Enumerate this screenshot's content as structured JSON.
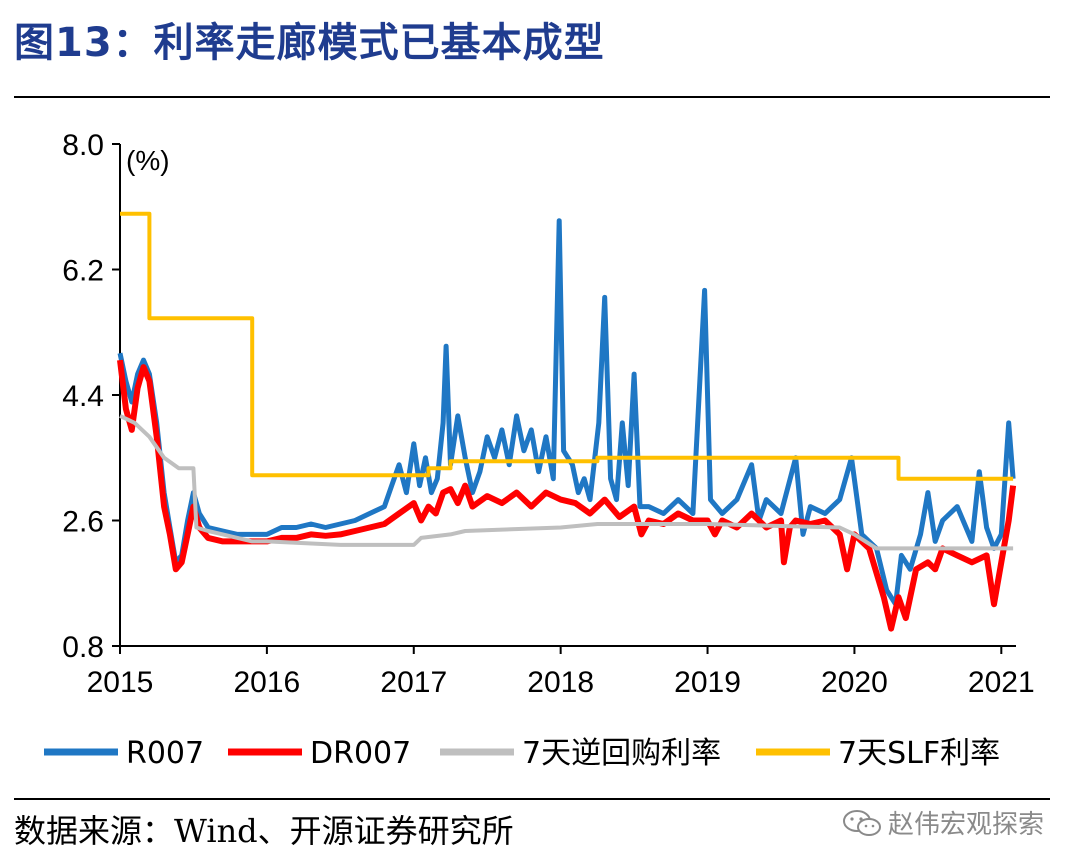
{
  "title": "图13：利率走廊模式已基本成型",
  "source": "数据来源：Wind、开源证券研究所",
  "watermark": "赵伟宏观探索",
  "chart_data": {
    "type": "line",
    "title": "",
    "unit_label": "(%)",
    "xlim": [
      2015.0,
      2021.1
    ],
    "ylim": [
      0.8,
      8.0
    ],
    "x_ticks": [
      "2015",
      "2016",
      "2017",
      "2018",
      "2019",
      "2020",
      "2021"
    ],
    "y_ticks": [
      "0.8",
      "2.6",
      "4.4",
      "6.2",
      "8.0"
    ],
    "grid": false,
    "legend_position": "bottom",
    "series": [
      {
        "name": "R007",
        "color": "#1f77c4",
        "points": [
          [
            2015.0,
            5.0
          ],
          [
            2015.04,
            4.6
          ],
          [
            2015.08,
            4.3
          ],
          [
            2015.12,
            4.7
          ],
          [
            2015.16,
            4.9
          ],
          [
            2015.2,
            4.7
          ],
          [
            2015.25,
            4.0
          ],
          [
            2015.3,
            3.0
          ],
          [
            2015.34,
            2.5
          ],
          [
            2015.38,
            2.0
          ],
          [
            2015.42,
            2.1
          ],
          [
            2015.46,
            2.6
          ],
          [
            2015.5,
            3.0
          ],
          [
            2015.54,
            2.7
          ],
          [
            2015.6,
            2.5
          ],
          [
            2015.7,
            2.45
          ],
          [
            2015.8,
            2.4
          ],
          [
            2015.9,
            2.4
          ],
          [
            2016.0,
            2.4
          ],
          [
            2016.1,
            2.5
          ],
          [
            2016.2,
            2.5
          ],
          [
            2016.3,
            2.55
          ],
          [
            2016.4,
            2.5
          ],
          [
            2016.5,
            2.55
          ],
          [
            2016.6,
            2.6
          ],
          [
            2016.7,
            2.7
          ],
          [
            2016.8,
            2.8
          ],
          [
            2016.85,
            3.1
          ],
          [
            2016.9,
            3.4
          ],
          [
            2016.95,
            3.0
          ],
          [
            2017.0,
            3.7
          ],
          [
            2017.04,
            3.1
          ],
          [
            2017.08,
            3.5
          ],
          [
            2017.12,
            3.0
          ],
          [
            2017.16,
            3.2
          ],
          [
            2017.2,
            4.0
          ],
          [
            2017.22,
            5.1
          ],
          [
            2017.25,
            3.4
          ],
          [
            2017.3,
            4.1
          ],
          [
            2017.35,
            3.5
          ],
          [
            2017.4,
            3.0
          ],
          [
            2017.45,
            3.3
          ],
          [
            2017.5,
            3.8
          ],
          [
            2017.55,
            3.5
          ],
          [
            2017.6,
            3.9
          ],
          [
            2017.65,
            3.4
          ],
          [
            2017.7,
            4.1
          ],
          [
            2017.75,
            3.6
          ],
          [
            2017.8,
            3.9
          ],
          [
            2017.85,
            3.3
          ],
          [
            2017.9,
            3.8
          ],
          [
            2017.95,
            3.2
          ],
          [
            2017.99,
            6.9
          ],
          [
            2018.02,
            3.6
          ],
          [
            2018.08,
            3.4
          ],
          [
            2018.12,
            3.0
          ],
          [
            2018.16,
            3.2
          ],
          [
            2018.2,
            2.9
          ],
          [
            2018.26,
            4.0
          ],
          [
            2018.3,
            5.8
          ],
          [
            2018.34,
            3.2
          ],
          [
            2018.38,
            2.9
          ],
          [
            2018.42,
            4.0
          ],
          [
            2018.46,
            3.1
          ],
          [
            2018.5,
            4.7
          ],
          [
            2018.54,
            2.8
          ],
          [
            2018.6,
            2.8
          ],
          [
            2018.7,
            2.7
          ],
          [
            2018.8,
            2.9
          ],
          [
            2018.9,
            2.7
          ],
          [
            2018.98,
            5.9
          ],
          [
            2019.02,
            2.9
          ],
          [
            2019.1,
            2.7
          ],
          [
            2019.2,
            2.9
          ],
          [
            2019.3,
            3.4
          ],
          [
            2019.35,
            2.6
          ],
          [
            2019.4,
            2.9
          ],
          [
            2019.5,
            2.7
          ],
          [
            2019.6,
            3.5
          ],
          [
            2019.65,
            2.4
          ],
          [
            2019.7,
            2.8
          ],
          [
            2019.8,
            2.7
          ],
          [
            2019.9,
            2.9
          ],
          [
            2019.98,
            3.5
          ],
          [
            2020.05,
            2.4
          ],
          [
            2020.15,
            2.2
          ],
          [
            2020.22,
            1.6
          ],
          [
            2020.28,
            1.4
          ],
          [
            2020.32,
            2.1
          ],
          [
            2020.38,
            1.9
          ],
          [
            2020.45,
            2.4
          ],
          [
            2020.5,
            3.0
          ],
          [
            2020.55,
            2.3
          ],
          [
            2020.6,
            2.6
          ],
          [
            2020.7,
            2.8
          ],
          [
            2020.8,
            2.3
          ],
          [
            2020.85,
            3.3
          ],
          [
            2020.9,
            2.5
          ],
          [
            2020.95,
            2.2
          ],
          [
            2021.0,
            2.4
          ],
          [
            2021.05,
            4.0
          ],
          [
            2021.08,
            3.2
          ]
        ]
      },
      {
        "name": "DR007",
        "color": "#ff0000",
        "points": [
          [
            2015.0,
            4.9
          ],
          [
            2015.04,
            4.2
          ],
          [
            2015.08,
            3.9
          ],
          [
            2015.12,
            4.5
          ],
          [
            2015.16,
            4.8
          ],
          [
            2015.2,
            4.6
          ],
          [
            2015.25,
            3.8
          ],
          [
            2015.3,
            2.8
          ],
          [
            2015.34,
            2.4
          ],
          [
            2015.38,
            1.9
          ],
          [
            2015.42,
            2.0
          ],
          [
            2015.46,
            2.4
          ],
          [
            2015.5,
            2.8
          ],
          [
            2015.54,
            2.5
          ],
          [
            2015.6,
            2.35
          ],
          [
            2015.7,
            2.3
          ],
          [
            2015.8,
            2.3
          ],
          [
            2015.9,
            2.3
          ],
          [
            2016.0,
            2.3
          ],
          [
            2016.1,
            2.35
          ],
          [
            2016.2,
            2.35
          ],
          [
            2016.3,
            2.4
          ],
          [
            2016.4,
            2.38
          ],
          [
            2016.5,
            2.4
          ],
          [
            2016.6,
            2.45
          ],
          [
            2016.7,
            2.5
          ],
          [
            2016.8,
            2.55
          ],
          [
            2016.9,
            2.7
          ],
          [
            2017.0,
            2.85
          ],
          [
            2017.05,
            2.6
          ],
          [
            2017.1,
            2.8
          ],
          [
            2017.15,
            2.7
          ],
          [
            2017.2,
            3.0
          ],
          [
            2017.25,
            3.05
          ],
          [
            2017.3,
            2.85
          ],
          [
            2017.35,
            3.1
          ],
          [
            2017.4,
            2.8
          ],
          [
            2017.5,
            2.95
          ],
          [
            2017.6,
            2.85
          ],
          [
            2017.7,
            3.0
          ],
          [
            2017.8,
            2.8
          ],
          [
            2017.9,
            3.0
          ],
          [
            2018.0,
            2.9
          ],
          [
            2018.1,
            2.85
          ],
          [
            2018.2,
            2.7
          ],
          [
            2018.3,
            2.9
          ],
          [
            2018.4,
            2.65
          ],
          [
            2018.5,
            2.8
          ],
          [
            2018.55,
            2.4
          ],
          [
            2018.6,
            2.6
          ],
          [
            2018.7,
            2.55
          ],
          [
            2018.8,
            2.7
          ],
          [
            2018.9,
            2.6
          ],
          [
            2019.0,
            2.6
          ],
          [
            2019.05,
            2.4
          ],
          [
            2019.1,
            2.6
          ],
          [
            2019.2,
            2.5
          ],
          [
            2019.3,
            2.7
          ],
          [
            2019.4,
            2.5
          ],
          [
            2019.5,
            2.6
          ],
          [
            2019.52,
            2.0
          ],
          [
            2019.56,
            2.5
          ],
          [
            2019.6,
            2.6
          ],
          [
            2019.7,
            2.55
          ],
          [
            2019.8,
            2.6
          ],
          [
            2019.9,
            2.4
          ],
          [
            2019.95,
            1.9
          ],
          [
            2020.0,
            2.4
          ],
          [
            2020.1,
            2.2
          ],
          [
            2020.2,
            1.5
          ],
          [
            2020.25,
            1.05
          ],
          [
            2020.3,
            1.5
          ],
          [
            2020.35,
            1.2
          ],
          [
            2020.42,
            1.9
          ],
          [
            2020.5,
            2.0
          ],
          [
            2020.55,
            1.9
          ],
          [
            2020.6,
            2.2
          ],
          [
            2020.7,
            2.1
          ],
          [
            2020.8,
            2.0
          ],
          [
            2020.9,
            2.1
          ],
          [
            2020.95,
            1.4
          ],
          [
            2021.0,
            2.0
          ],
          [
            2021.05,
            2.6
          ],
          [
            2021.08,
            3.1
          ]
        ]
      },
      {
        "name": "7天逆回购利率",
        "color": "#bfbfbf",
        "points": [
          [
            2015.0,
            4.1
          ],
          [
            2015.1,
            4.0
          ],
          [
            2015.2,
            3.8
          ],
          [
            2015.3,
            3.5
          ],
          [
            2015.4,
            3.35
          ],
          [
            2015.5,
            3.35
          ],
          [
            2015.52,
            2.5
          ],
          [
            2015.6,
            2.45
          ],
          [
            2015.7,
            2.4
          ],
          [
            2015.8,
            2.35
          ],
          [
            2015.9,
            2.3
          ],
          [
            2016.0,
            2.3
          ],
          [
            2016.5,
            2.25
          ],
          [
            2017.0,
            2.25
          ],
          [
            2017.05,
            2.35
          ],
          [
            2017.25,
            2.4
          ],
          [
            2017.35,
            2.45
          ],
          [
            2018.0,
            2.5
          ],
          [
            2018.25,
            2.55
          ],
          [
            2019.0,
            2.55
          ],
          [
            2019.9,
            2.5
          ],
          [
            2020.0,
            2.4
          ],
          [
            2020.15,
            2.2
          ],
          [
            2020.25,
            2.2
          ],
          [
            2020.3,
            2.2
          ],
          [
            2021.08,
            2.2
          ]
        ]
      },
      {
        "name": "7天SLF利率",
        "color": "#ffc000",
        "points": [
          [
            2015.0,
            7.0
          ],
          [
            2015.2,
            7.0
          ],
          [
            2015.2,
            5.5
          ],
          [
            2015.9,
            5.5
          ],
          [
            2015.9,
            3.25
          ],
          [
            2017.1,
            3.25
          ],
          [
            2017.1,
            3.35
          ],
          [
            2017.25,
            3.35
          ],
          [
            2017.25,
            3.45
          ],
          [
            2018.25,
            3.45
          ],
          [
            2018.25,
            3.5
          ],
          [
            2020.3,
            3.5
          ],
          [
            2020.3,
            3.2
          ],
          [
            2021.08,
            3.2
          ]
        ]
      }
    ]
  }
}
